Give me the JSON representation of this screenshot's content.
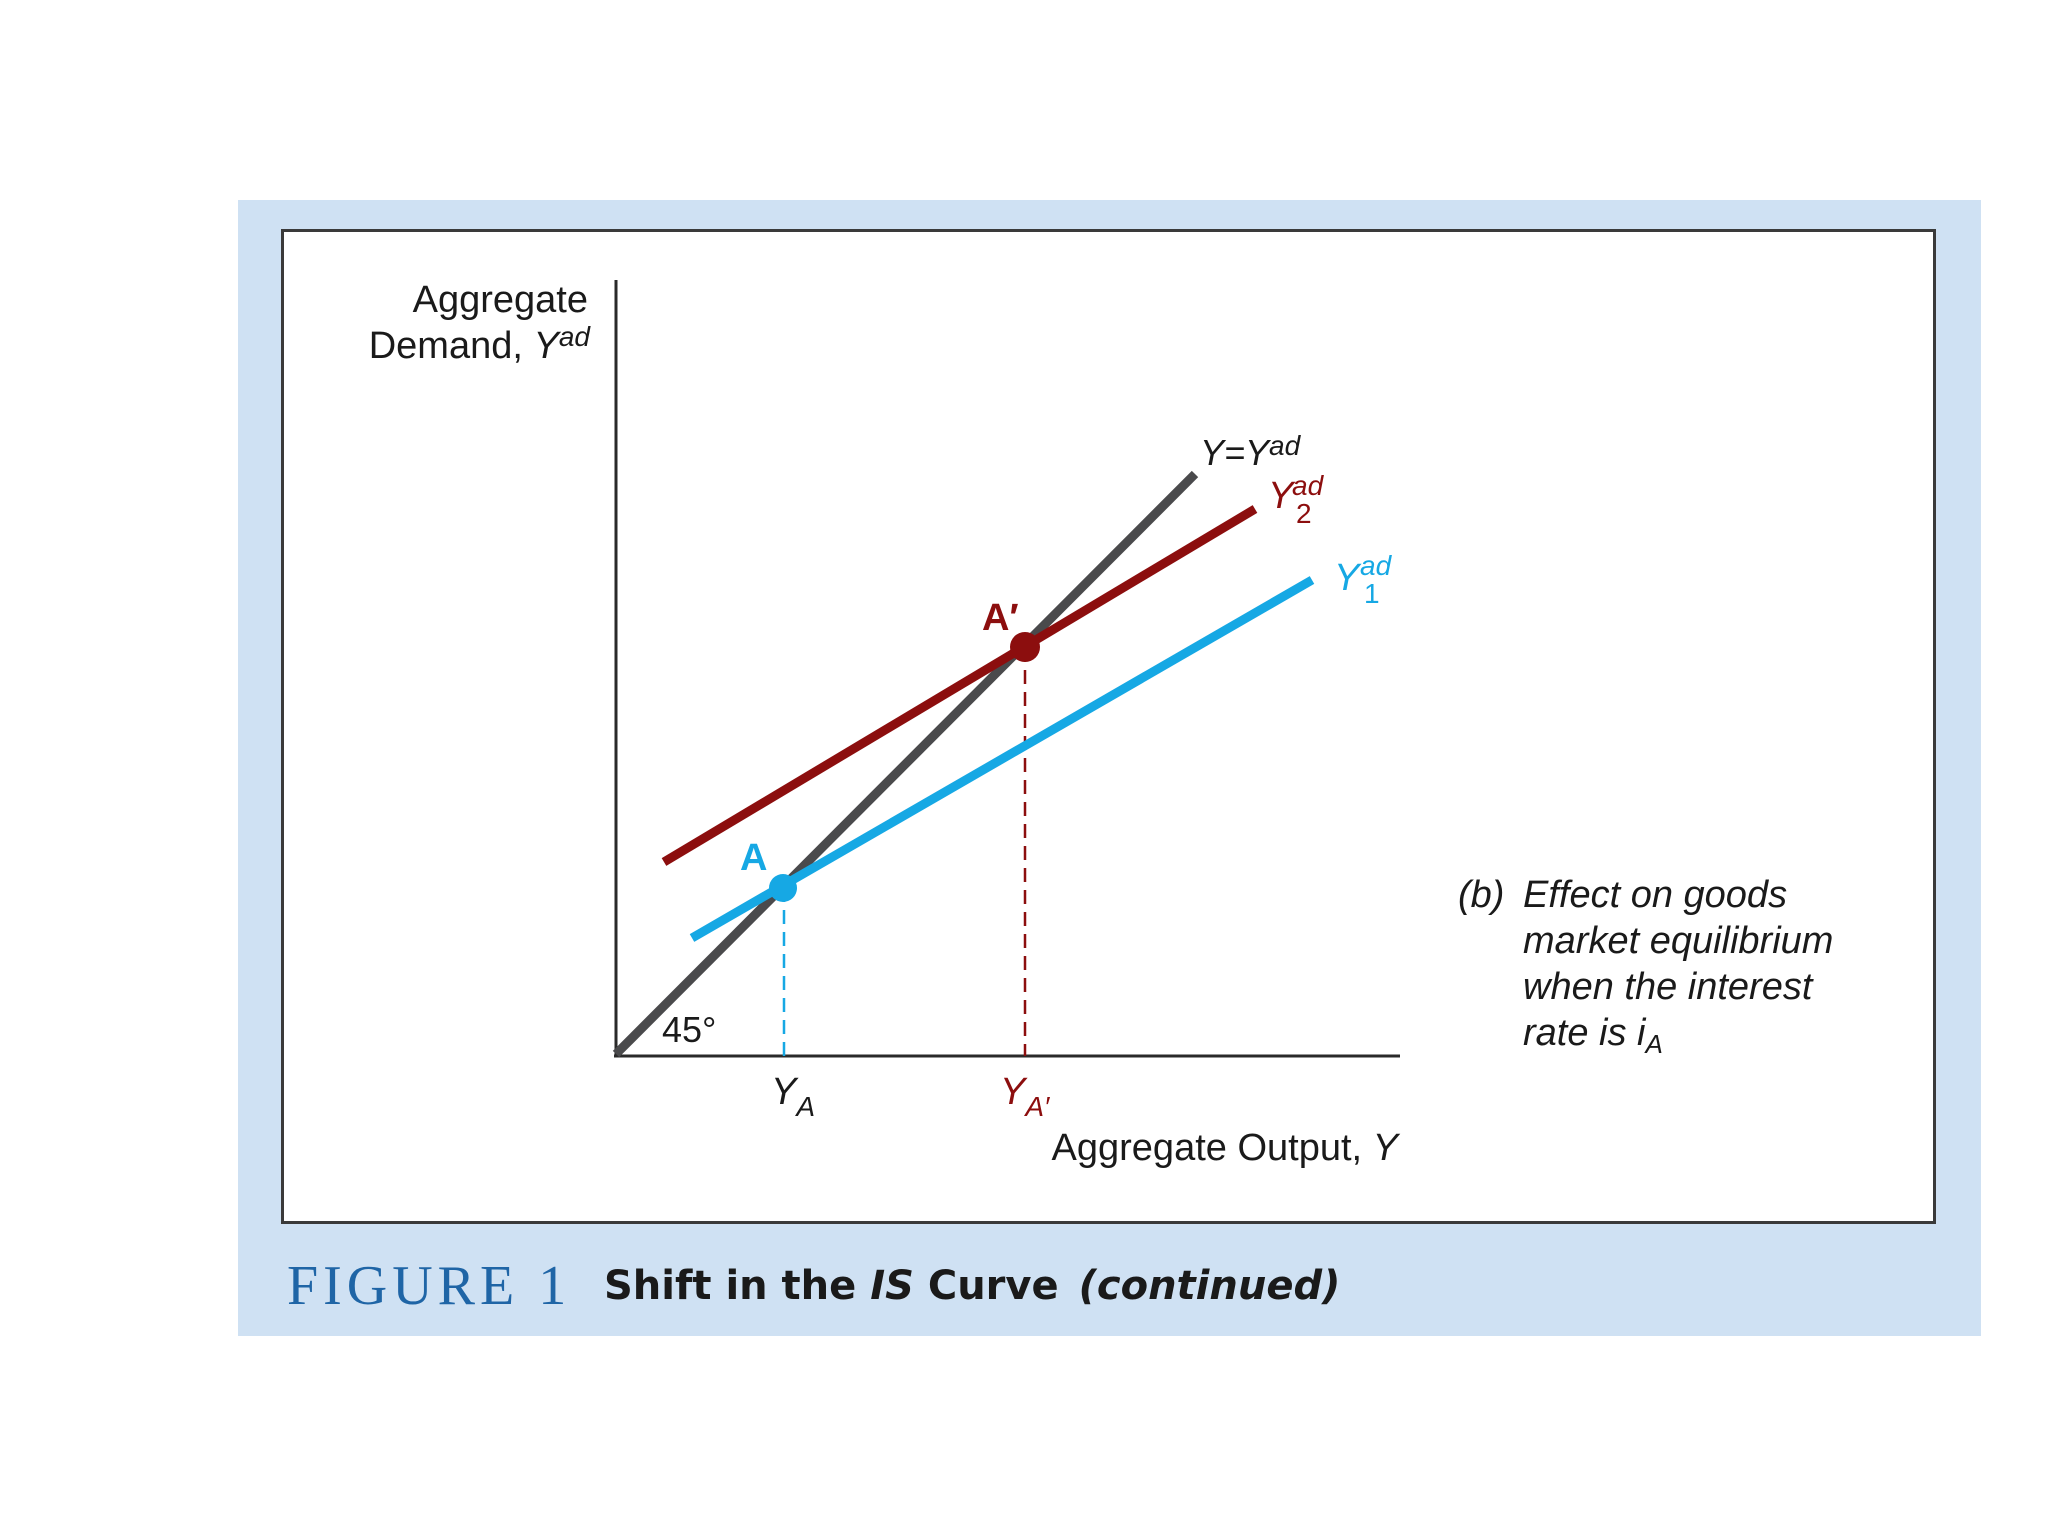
{
  "figure": {
    "label": "FIGURE 1",
    "title_prefix": "Shift in the ",
    "title_is": "IS",
    "title_suffix": " Curve",
    "title_continued": "(continued)"
  },
  "axes": {
    "y_label_line1": "Aggregate",
    "y_label_line2": "Demand, ",
    "y_label_var": "Y",
    "y_label_sup": "ad",
    "x_label": "Aggregate Output, ",
    "x_label_var": "Y",
    "angle_label": "45°"
  },
  "curves": {
    "identity_label_main": "Y=Y",
    "identity_label_sup": "ad",
    "y1_var": "Y",
    "y1_sup": "ad",
    "y1_sub": "1",
    "y2_var": "Y",
    "y2_sup": "ad",
    "y2_sub": "2"
  },
  "points": {
    "a_label": "A",
    "a_prime_label": "A′",
    "ya_var": "Y",
    "ya_sub": "A",
    "yaprime_var": "Y",
    "yaprime_sub": "A′"
  },
  "note": {
    "tag": "(b)",
    "line1": "Effect on goods",
    "line2": "market equilibrium",
    "line3": "when the interest",
    "line4_prefix": "rate is ",
    "line4_var": "i",
    "line4_sub": "A"
  },
  "colors": {
    "identity_line": "#4a4a4c",
    "y1_line": "#16a8e4",
    "y2_line": "#8c0e0e",
    "axis": "#2a2a2a",
    "panel_bg": "#cfe1f3",
    "figure_label": "#1f65a6"
  }
}
